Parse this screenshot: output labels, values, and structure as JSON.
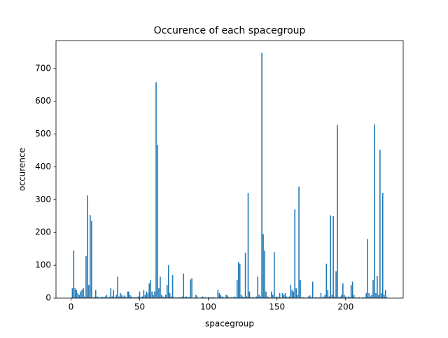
{
  "chart_data": {
    "type": "bar",
    "title": "Occurence of each spacegroup",
    "xlabel": "spacegroup",
    "ylabel": "occurence",
    "color": "#1f77b4",
    "x": [
      1,
      2,
      3,
      4,
      5,
      6,
      7,
      8,
      9,
      10,
      11,
      12,
      13,
      14,
      15,
      16,
      17,
      18,
      19,
      20,
      21,
      22,
      23,
      24,
      25,
      26,
      27,
      28,
      29,
      30,
      31,
      32,
      33,
      34,
      35,
      36,
      37,
      38,
      39,
      40,
      41,
      42,
      43,
      44,
      45,
      46,
      47,
      48,
      49,
      50,
      51,
      52,
      53,
      54,
      55,
      56,
      57,
      58,
      59,
      60,
      61,
      62,
      63,
      64,
      65,
      66,
      67,
      68,
      69,
      70,
      71,
      72,
      73,
      74,
      75,
      76,
      77,
      78,
      79,
      80,
      81,
      82,
      83,
      84,
      85,
      86,
      87,
      88,
      89,
      90,
      91,
      92,
      93,
      94,
      95,
      96,
      97,
      98,
      99,
      100,
      101,
      102,
      103,
      104,
      105,
      106,
      107,
      108,
      109,
      110,
      111,
      112,
      113,
      114,
      115,
      116,
      117,
      118,
      119,
      120,
      121,
      122,
      123,
      124,
      125,
      126,
      127,
      128,
      129,
      130,
      131,
      132,
      133,
      134,
      135,
      136,
      137,
      138,
      139,
      140,
      141,
      142,
      143,
      144,
      145,
      146,
      147,
      148,
      149,
      150,
      151,
      152,
      153,
      154,
      155,
      156,
      157,
      158,
      159,
      160,
      161,
      162,
      163,
      164,
      165,
      166,
      167,
      168,
      169,
      170,
      171,
      172,
      173,
      174,
      175,
      176,
      177,
      178,
      179,
      180,
      181,
      182,
      183,
      184,
      185,
      186,
      187,
      188,
      189,
      190,
      191,
      192,
      193,
      194,
      195,
      196,
      197,
      198,
      199,
      200,
      201,
      202,
      203,
      204,
      205,
      206,
      207,
      208,
      209,
      210,
      211,
      212,
      213,
      214,
      215,
      216,
      217,
      218,
      219,
      220,
      221,
      222,
      223,
      224,
      225,
      226,
      227,
      228,
      229,
      230
    ],
    "values": [
      30,
      145,
      30,
      25,
      15,
      10,
      20,
      25,
      30,
      5,
      128,
      313,
      40,
      253,
      235,
      2,
      3,
      25,
      5,
      3,
      2,
      3,
      4,
      3,
      5,
      10,
      2,
      4,
      30,
      5,
      25,
      3,
      10,
      65,
      5,
      15,
      10,
      5,
      8,
      3,
      20,
      20,
      10,
      5,
      2,
      3,
      2,
      3,
      5,
      20,
      3,
      5,
      25,
      10,
      20,
      15,
      45,
      55,
      20,
      10,
      20,
      658,
      467,
      30,
      65,
      10,
      5,
      3,
      10,
      40,
      100,
      15,
      5,
      70,
      3,
      2,
      2,
      2,
      3,
      2,
      5,
      75,
      3,
      5,
      3,
      3,
      57,
      60,
      1,
      2,
      10,
      5,
      1,
      2,
      3,
      5,
      2,
      3,
      1,
      3,
      2,
      3,
      2,
      3,
      2,
      1,
      25,
      15,
      10,
      5,
      3,
      2,
      10,
      8,
      3,
      2,
      3,
      2,
      5,
      3,
      55,
      110,
      105,
      10,
      5,
      3,
      138,
      5,
      320,
      20,
      3,
      2,
      3,
      2,
      5,
      65,
      10,
      5,
      748,
      195,
      145,
      20,
      5,
      3,
      2,
      20,
      10,
      140,
      3,
      5,
      3,
      15,
      2,
      15,
      10,
      15,
      5,
      2,
      5,
      40,
      25,
      20,
      270,
      30,
      10,
      340,
      55,
      2,
      3,
      2,
      1,
      2,
      5,
      8,
      3,
      50,
      1,
      3,
      2,
      2,
      2,
      15,
      2,
      5,
      10,
      105,
      25,
      5,
      252,
      10,
      250,
      5,
      82,
      528,
      3,
      5,
      10,
      45,
      10,
      5,
      2,
      5,
      3,
      40,
      50,
      10,
      2,
      2,
      1,
      3,
      1,
      2,
      2,
      3,
      15,
      180,
      15,
      5,
      10,
      55,
      530,
      15,
      68,
      10,
      452,
      15,
      320,
      10,
      25,
      3
    ],
    "xlim": [
      -10.9,
      241.9
    ],
    "xticks": [
      0,
      50,
      100,
      150,
      200
    ],
    "ylim": [
      0,
      785
    ],
    "yticks": [
      0,
      100,
      200,
      300,
      400,
      500,
      600,
      700
    ]
  }
}
